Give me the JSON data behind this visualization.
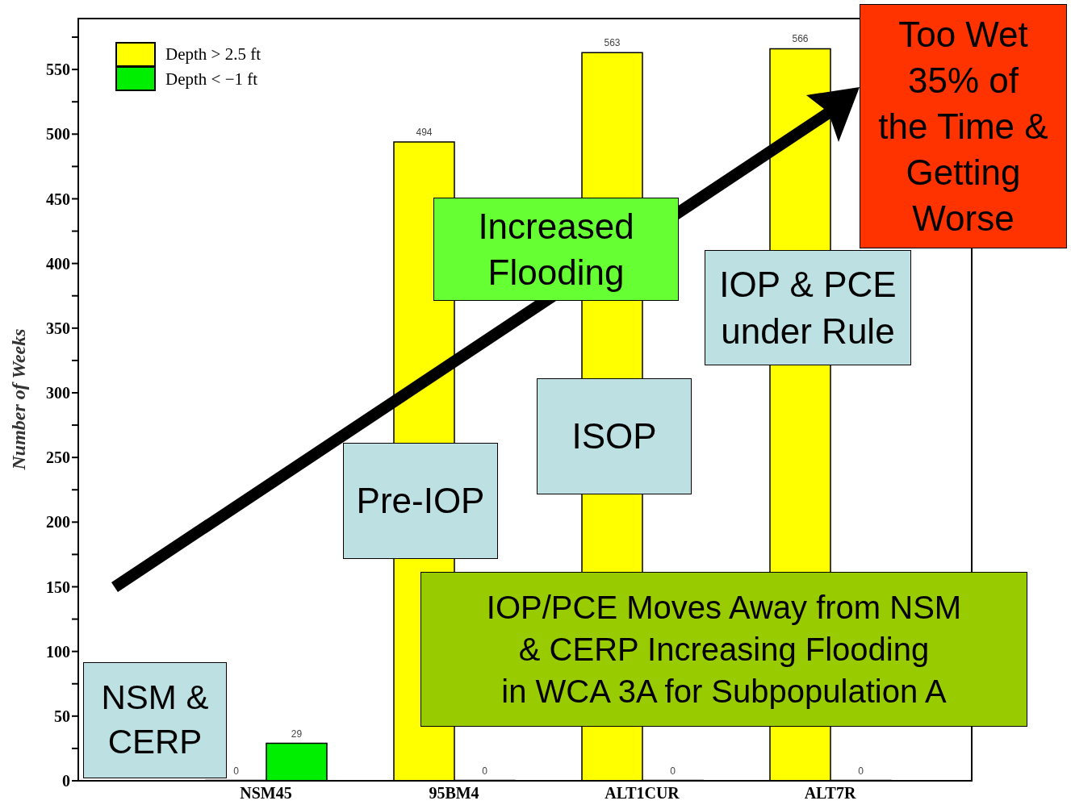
{
  "chart_data": {
    "type": "bar",
    "ylabel": "Number of Weeks",
    "categories": [
      "NSM45",
      "95BM4",
      "ALT1CUR",
      "ALT7R"
    ],
    "series": [
      {
        "name": "Depth > 2.5 ft",
        "color": "#ffff00",
        "values": [
          0,
          494,
          563,
          566
        ]
      },
      {
        "name": "Depth < −1 ft",
        "color": "#00ee00",
        "values": [
          29,
          0,
          0,
          0
        ]
      }
    ],
    "ylim": [
      0,
      590
    ],
    "yticks": [
      0,
      {
        "value": 25,
        "label": null
      },
      50,
      {
        "value": 75,
        "label": null
      },
      100,
      {
        "value": 125,
        "label": null
      },
      150,
      {
        "value": 175,
        "label": null
      },
      200,
      {
        "value": 225,
        "label": null
      },
      250,
      {
        "value": 275,
        "label": null
      },
      300,
      {
        "value": 325,
        "label": null
      },
      350,
      {
        "value": 375,
        "label": null
      },
      400,
      {
        "value": 425,
        "label": null
      },
      450,
      {
        "value": 475,
        "label": null
      },
      500,
      {
        "value": 525,
        "label": null
      },
      550,
      {
        "value": 575,
        "label": null
      }
    ],
    "data_labels": true,
    "legend": "top left",
    "grid": false,
    "annotations": [
      "Too Wet\n35% of\nthe Time &\nGetting\nWorse",
      "Increased\nFlooding",
      "IOP & PCE\nunder Rule",
      "ISOP",
      "Pre-IOP",
      "IOP/PCE Moves Away from NSM\n& CERP Increasing Flooding\nin WCA 3A for Subpopulation A",
      "NSM &\nCERP"
    ]
  }
}
